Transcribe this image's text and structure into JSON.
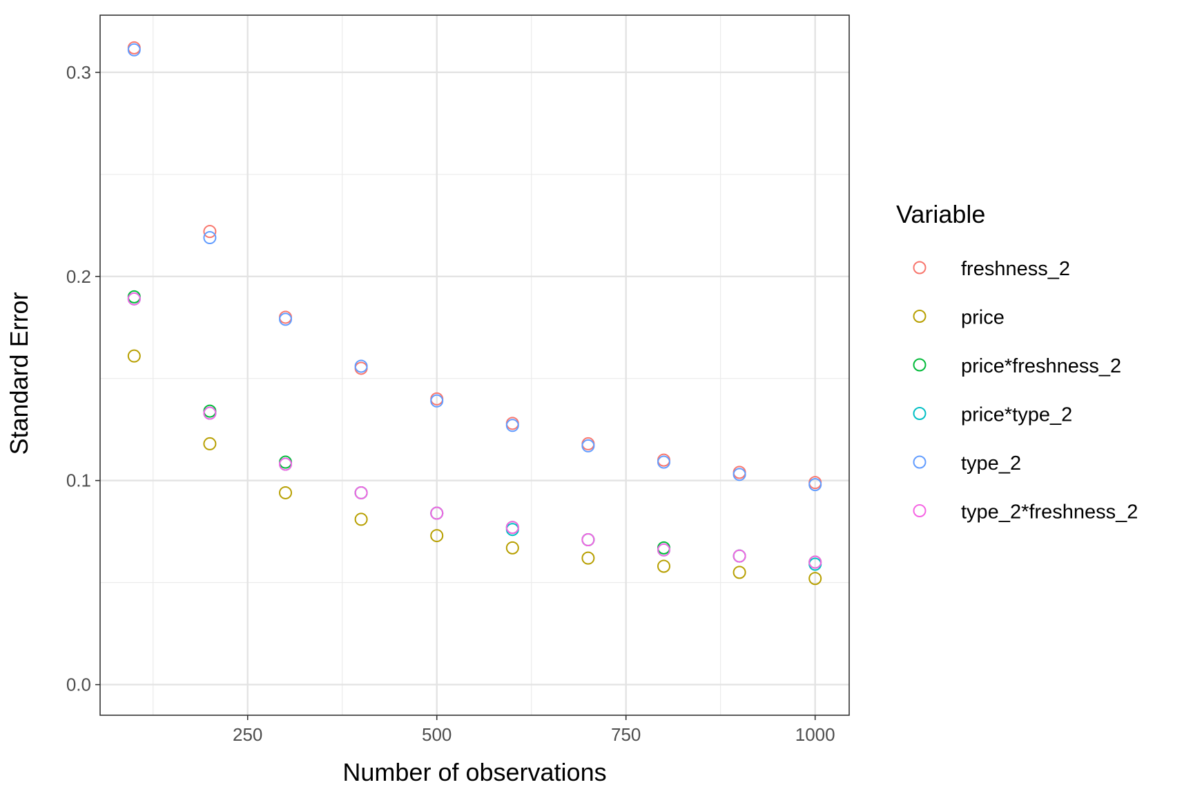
{
  "chart_data": {
    "type": "scatter",
    "title": "",
    "xlabel": "Number of observations",
    "ylabel": "Standard Error",
    "xlim": [
      55,
      1045
    ],
    "ylim": [
      -0.015,
      0.328
    ],
    "x_ticks": [
      250,
      500,
      750,
      1000
    ],
    "x_tick_labels": [
      "250",
      "500",
      "750",
      "1000"
    ],
    "y_ticks": [
      0.0,
      0.1,
      0.2,
      0.3
    ],
    "y_tick_labels": [
      "0.0",
      "0.1",
      "0.2",
      "0.3"
    ],
    "x_minor_ticks": [
      125,
      375,
      625,
      875
    ],
    "y_minor_ticks": [
      0.05,
      0.15,
      0.25
    ],
    "grid": true,
    "legend": {
      "title": "Variable",
      "position": "right"
    },
    "x": [
      100,
      200,
      300,
      400,
      500,
      600,
      700,
      800,
      900,
      1000
    ],
    "series": [
      {
        "name": "freshness_2",
        "color": "#F8766D",
        "values": [
          0.312,
          0.222,
          0.18,
          0.155,
          0.14,
          0.128,
          0.118,
          0.11,
          0.104,
          0.099
        ]
      },
      {
        "name": "price",
        "color": "#B79F00",
        "values": [
          0.161,
          0.118,
          0.094,
          0.081,
          0.073,
          0.067,
          0.062,
          0.058,
          0.055,
          0.052
        ]
      },
      {
        "name": "price*freshness_2",
        "color": "#00BA38",
        "values": [
          0.19,
          0.134,
          0.109,
          0.094,
          0.084,
          0.077,
          0.071,
          0.067,
          0.063,
          0.06
        ]
      },
      {
        "name": "price*type_2",
        "color": "#00BFC4",
        "values": [
          0.189,
          0.133,
          0.108,
          0.094,
          0.084,
          0.076,
          0.071,
          0.066,
          0.063,
          0.059
        ]
      },
      {
        "name": "type_2",
        "color": "#619CFF",
        "values": [
          0.311,
          0.219,
          0.179,
          0.156,
          0.139,
          0.127,
          0.117,
          0.109,
          0.103,
          0.098
        ]
      },
      {
        "name": "type_2*freshness_2",
        "color": "#F564E3",
        "values": [
          0.189,
          0.133,
          0.108,
          0.094,
          0.084,
          0.077,
          0.071,
          0.066,
          0.063,
          0.06
        ]
      }
    ]
  }
}
